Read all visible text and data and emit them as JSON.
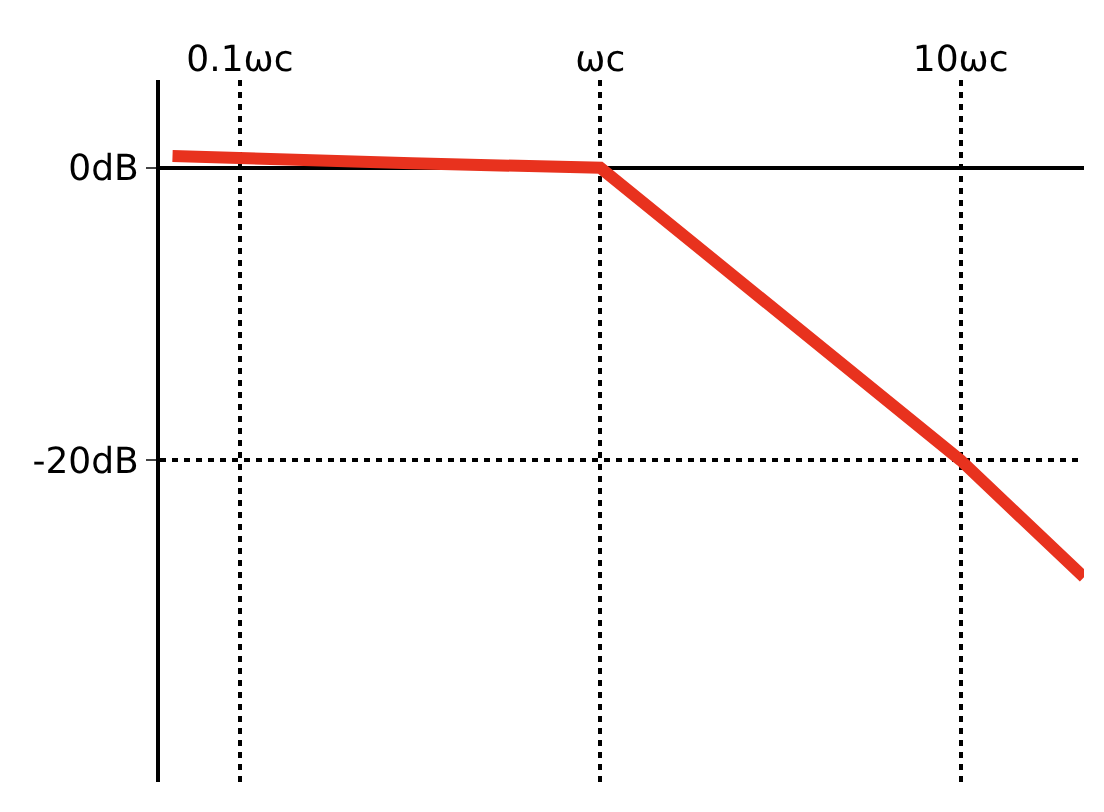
{
  "chart_data": {
    "type": "line",
    "log": "x",
    "x": [
      0.065,
      0.3,
      1,
      10,
      22
    ],
    "series": [
      {
        "color": "#e8321e",
        "values": [
          0.8,
          0.3,
          0,
          -20,
          -28
        ]
      }
    ],
    "xlim": [
      0.06,
      22
    ],
    "ylim": [
      -42,
      6
    ],
    "xticks": [
      {
        "value": 0.1,
        "label": "0.1ωc"
      },
      {
        "value": 1,
        "label": "ωc"
      },
      {
        "value": 10,
        "label": "10ωc"
      }
    ],
    "yticks": [
      {
        "value": 0,
        "label": "0dB"
      },
      {
        "value": -20,
        "label": "-20dB"
      }
    ],
    "grid": true,
    "marker": "none",
    "line_style": "solid"
  }
}
